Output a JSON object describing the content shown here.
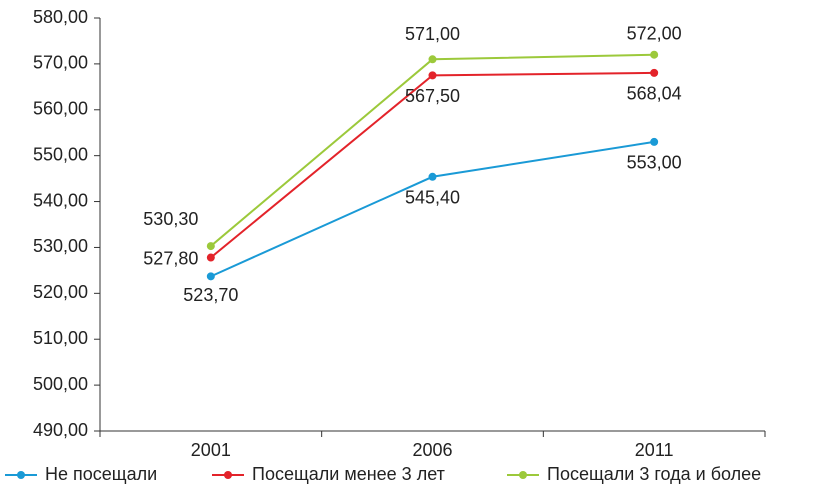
{
  "chart_data": {
    "type": "line",
    "categories": [
      "2001",
      "2006",
      "2011"
    ],
    "series": [
      {
        "name": "Не посещали",
        "color": "#1a9ad6",
        "values": [
          523.7,
          545.4,
          553.0
        ],
        "value_labels": [
          "523,70",
          "545,40",
          "553,00"
        ]
      },
      {
        "name": "Посещали менее 3 лет",
        "color": "#e3232a",
        "values": [
          527.8,
          567.5,
          568.04
        ],
        "value_labels": [
          "527,80",
          "567,50",
          "568,04"
        ]
      },
      {
        "name": "Посещали 3 года и более",
        "color": "#9cc93b",
        "values": [
          530.3,
          571.0,
          572.0
        ],
        "value_labels": [
          "530,30",
          "571,00",
          "572,00"
        ]
      }
    ],
    "ylim": [
      490,
      580
    ],
    "yticks": [
      {
        "value": 490,
        "label": "490,00"
      },
      {
        "value": 500,
        "label": "500,00"
      },
      {
        "value": 510,
        "label": "510,00"
      },
      {
        "value": 520,
        "label": "520,00"
      },
      {
        "value": 530,
        "label": "530,00"
      },
      {
        "value": 540,
        "label": "540,00"
      },
      {
        "value": 550,
        "label": "550,00"
      },
      {
        "value": 560,
        "label": "560,00"
      },
      {
        "value": 570,
        "label": "570,00"
      },
      {
        "value": 580,
        "label": "580,00"
      }
    ],
    "grid": false,
    "legend": "bottom"
  }
}
